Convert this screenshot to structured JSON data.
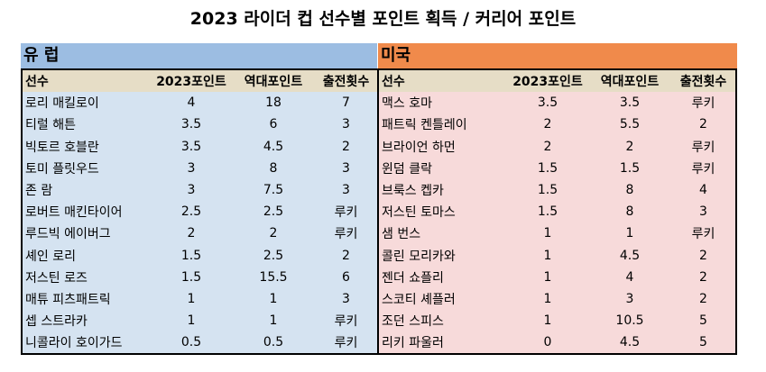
{
  "title": "2023 라이더 컵 선수별 포인트 획득 / 커리어 포인트",
  "europe": {
    "label": "유 럽",
    "columns": [
      "선수",
      "2023포인트",
      "역대포인트",
      "출전횟수"
    ],
    "rows": [
      [
        "로리 매킬로이",
        "4",
        "18",
        "7"
      ],
      [
        "티럴 해튼",
        "3.5",
        "6",
        "3"
      ],
      [
        "빅토르 호블란",
        "3.5",
        "4.5",
        "2"
      ],
      [
        "토미 플릿우드",
        "3",
        "8",
        "3"
      ],
      [
        "존 람",
        "3",
        "7.5",
        "3"
      ],
      [
        "로버트 매킨타이어",
        "2.5",
        "2.5",
        "루키"
      ],
      [
        "루드빅 에이버그",
        "2",
        "2",
        "루키"
      ],
      [
        "셰인 로리",
        "1.5",
        "2.5",
        "2"
      ],
      [
        "저스틴 로즈",
        "1.5",
        "15.5",
        "6"
      ],
      [
        "매튜 피츠패트릭",
        "1",
        "1",
        "3"
      ],
      [
        "셉 스트라카",
        "1",
        "1",
        "루키"
      ],
      [
        "니콜라이 호이가드",
        "0.5",
        "0.5",
        "루키"
      ]
    ]
  },
  "usa": {
    "label": "미국",
    "columns": [
      "선수",
      "2023포인트",
      "역대포인트",
      "출전횟수"
    ],
    "rows": [
      [
        "맥스 호마",
        "3.5",
        "3.5",
        "루키"
      ],
      [
        "패트릭 켄틀레이",
        "2",
        "5.5",
        "2"
      ],
      [
        "브라이언 하먼",
        "2",
        "2",
        "루키"
      ],
      [
        "윈덤 클락",
        "1.5",
        "1.5",
        "루키"
      ],
      [
        "브룩스 켑카",
        "1.5",
        "8",
        "4"
      ],
      [
        "저스틴 토마스",
        "1.5",
        "8",
        "3"
      ],
      [
        "샘 번스",
        "1",
        "1",
        "루키"
      ],
      [
        "콜린 모리카와",
        "1",
        "4.5",
        "2"
      ],
      [
        "젠더 쇼플리",
        "1",
        "4",
        "2"
      ],
      [
        "스코티 셰플러",
        "1",
        "3",
        "2"
      ],
      [
        "조던 스피스",
        "1",
        "10.5",
        "5"
      ],
      [
        "리키 파울러",
        "0",
        "4.5",
        "5"
      ]
    ]
  }
}
